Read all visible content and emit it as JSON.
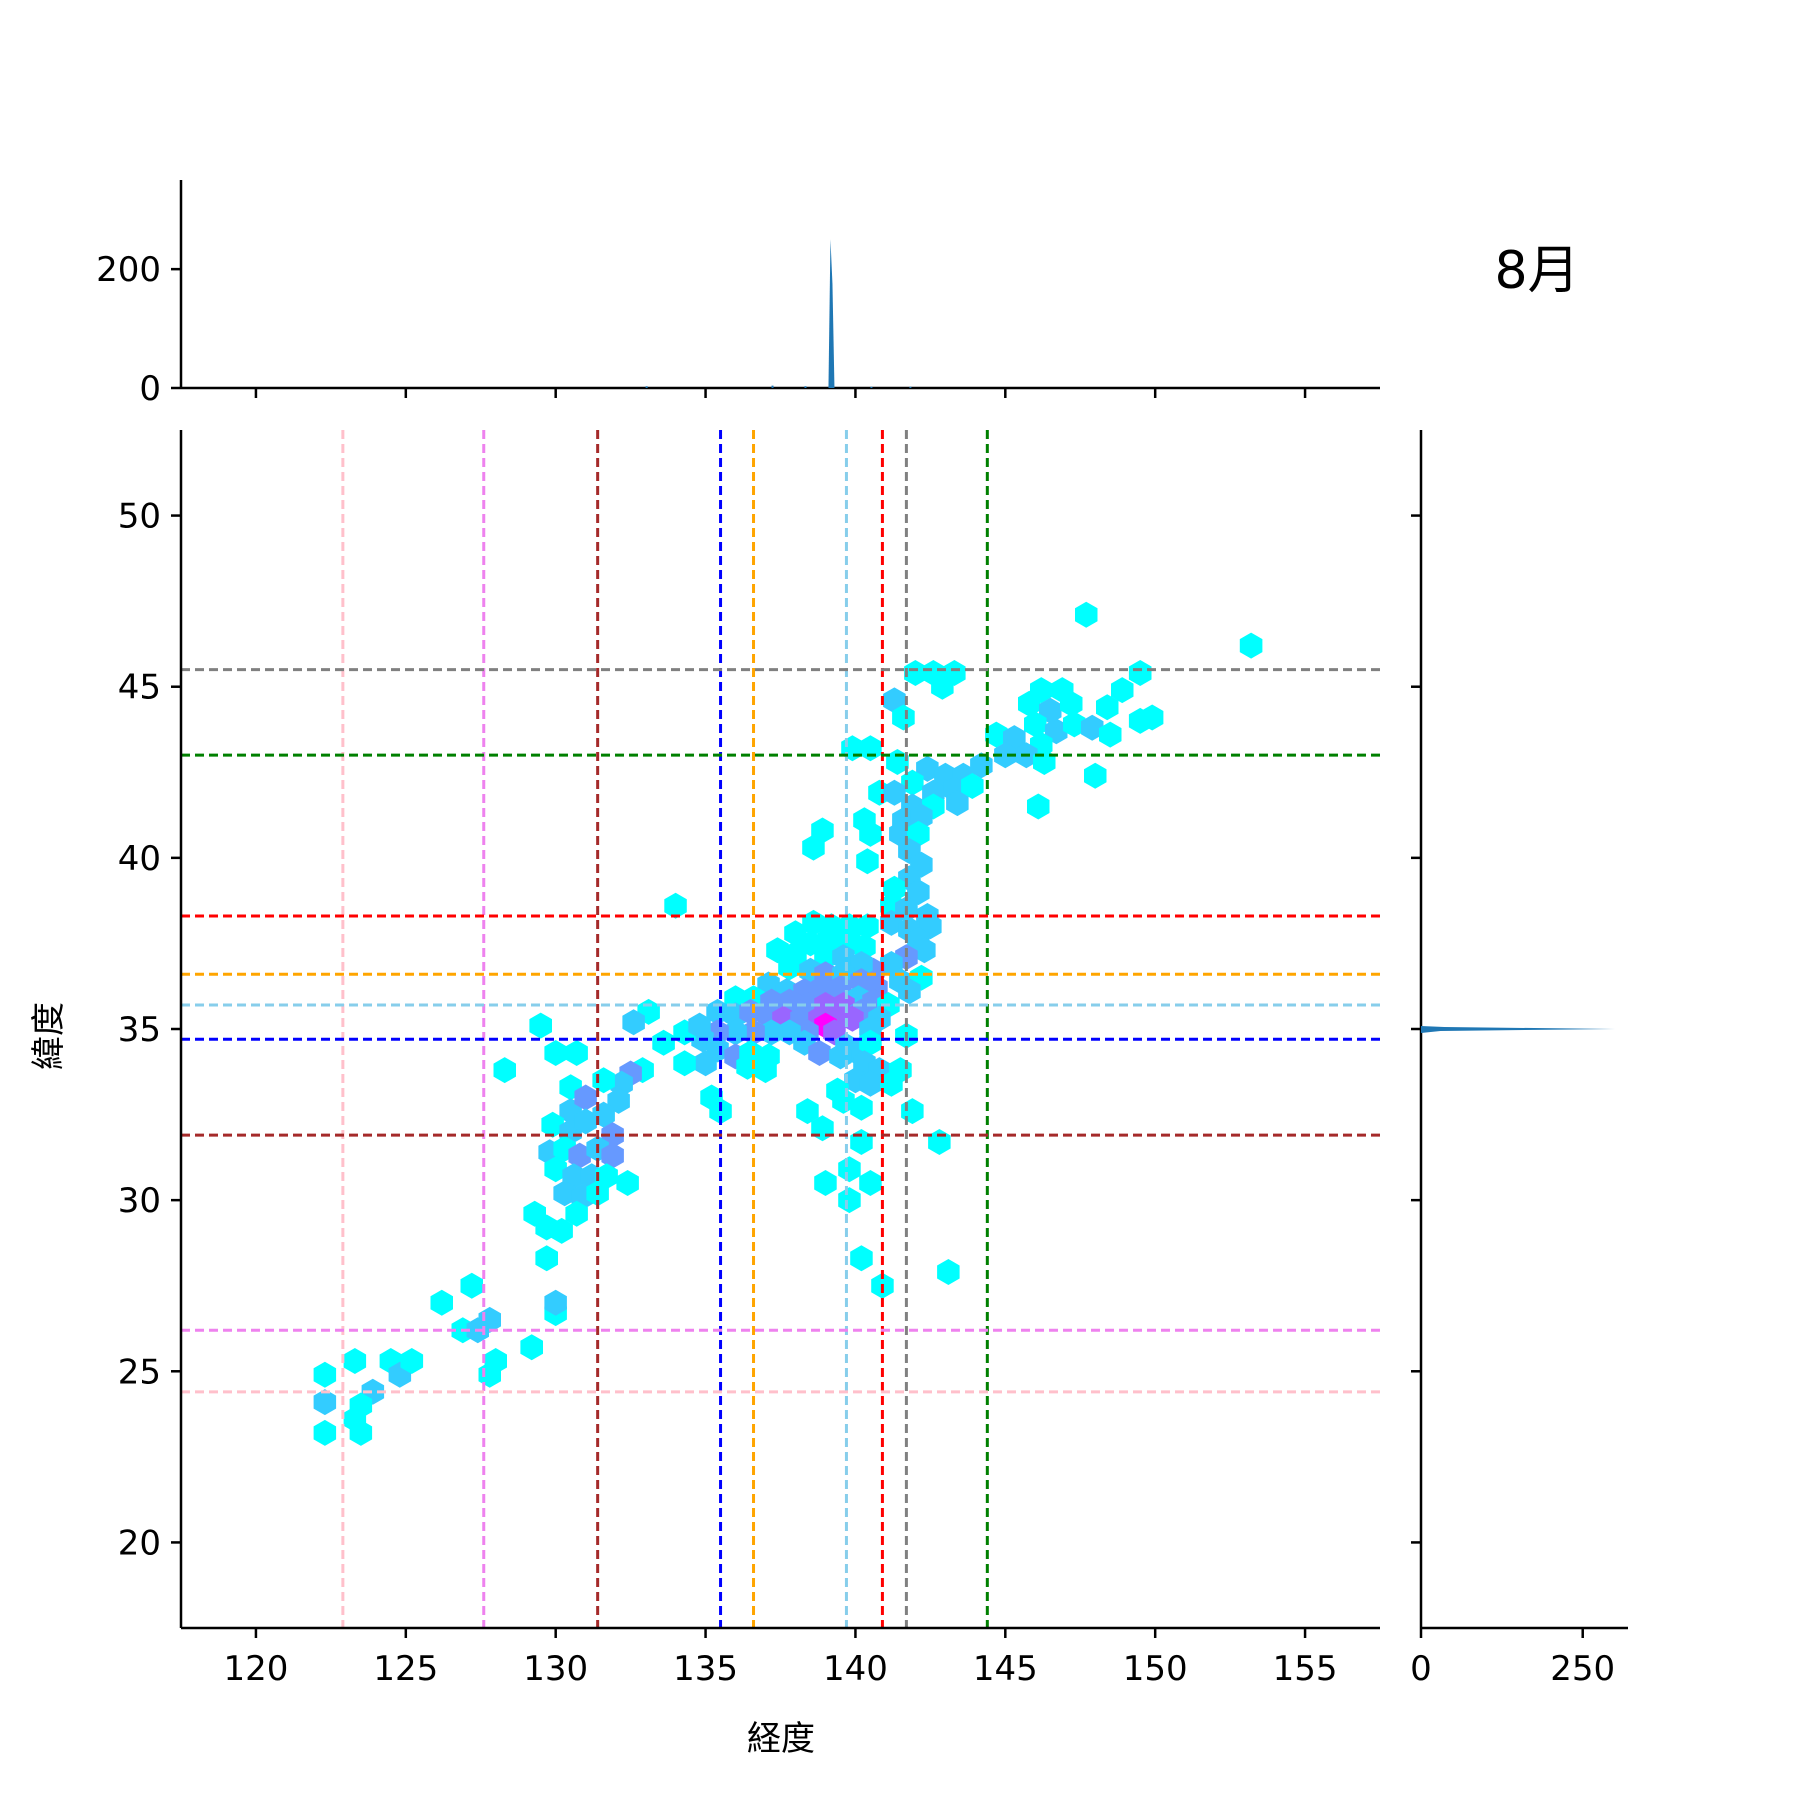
{
  "chart_data": {
    "type": "joint-hexbin",
    "title": "8月",
    "xlabel": "経度",
    "ylabel": "緯度",
    "xlim": [
      117.5,
      157.5
    ],
    "ylim": [
      17.5,
      52.5
    ],
    "x_ticks": [
      120,
      125,
      130,
      135,
      140,
      145,
      150,
      155
    ],
    "y_ticks": [
      20,
      25,
      30,
      35,
      40,
      45,
      50
    ],
    "top_marginal": {
      "type": "histogram",
      "axis": "x",
      "ylim": [
        0,
        350
      ],
      "ticks": [
        0,
        200
      ],
      "peak": {
        "x": 139.2,
        "count": 250
      }
    },
    "right_marginal": {
      "type": "histogram",
      "axis": "y",
      "xlim": [
        0,
        320
      ],
      "ticks": [
        0,
        250
      ],
      "peak": {
        "y": 35.0,
        "count": 300
      }
    },
    "vertical_lines": [
      {
        "x": 122.9,
        "color": "#ffc0cb"
      },
      {
        "x": 127.6,
        "color": "#ee82ee"
      },
      {
        "x": 131.4,
        "color": "#a52a2a"
      },
      {
        "x": 135.5,
        "color": "#0000ff"
      },
      {
        "x": 136.6,
        "color": "#ffa500"
      },
      {
        "x": 139.7,
        "color": "#87ceeb"
      },
      {
        "x": 140.9,
        "color": "#ff0000"
      },
      {
        "x": 141.7,
        "color": "#808080"
      },
      {
        "x": 144.4,
        "color": "#008000"
      }
    ],
    "horizontal_lines": [
      {
        "y": 45.5,
        "color": "#808080"
      },
      {
        "y": 43.0,
        "color": "#008000"
      },
      {
        "y": 38.3,
        "color": "#ff0000"
      },
      {
        "y": 36.6,
        "color": "#ffa500"
      },
      {
        "y": 35.7,
        "color": "#87ceeb"
      },
      {
        "y": 34.7,
        "color": "#0000ff"
      },
      {
        "y": 31.9,
        "color": "#a52a2a"
      },
      {
        "y": 26.2,
        "color": "#ee82ee"
      },
      {
        "y": 24.4,
        "color": "#ffc0cb"
      }
    ],
    "colormap": [
      "#00ffff",
      "#33ccff",
      "#6699ff",
      "#9966ff",
      "#ff00ff"
    ],
    "hexbins": [
      [
        147.7,
        47.1,
        0
      ],
      [
        153.2,
        46.2,
        0
      ],
      [
        149.5,
        45.4,
        0
      ],
      [
        148.9,
        44.9,
        0
      ],
      [
        149.5,
        44.0,
        0
      ],
      [
        149.9,
        44.1,
        0
      ],
      [
        146.2,
        44.9,
        0
      ],
      [
        146.9,
        44.9,
        0
      ],
      [
        145.8,
        44.5,
        0
      ],
      [
        146.5,
        44.3,
        1
      ],
      [
        147.2,
        44.5,
        0
      ],
      [
        148.4,
        44.4,
        0
      ],
      [
        146.0,
        43.9,
        0
      ],
      [
        146.7,
        43.7,
        1
      ],
      [
        147.3,
        43.9,
        0
      ],
      [
        147.9,
        43.8,
        1
      ],
      [
        148.5,
        43.6,
        0
      ],
      [
        144.7,
        43.6,
        0
      ],
      [
        145.3,
        43.5,
        1
      ],
      [
        146.2,
        43.3,
        0
      ],
      [
        145.0,
        43.0,
        1
      ],
      [
        145.7,
        43.0,
        1
      ],
      [
        146.3,
        42.8,
        0
      ],
      [
        148.0,
        42.4,
        0
      ],
      [
        146.1,
        41.5,
        0
      ],
      [
        142.0,
        45.4,
        0
      ],
      [
        142.6,
        45.4,
        0
      ],
      [
        143.3,
        45.4,
        0
      ],
      [
        142.9,
        45.0,
        0
      ],
      [
        141.3,
        44.6,
        1
      ],
      [
        141.6,
        44.1,
        0
      ],
      [
        139.9,
        43.2,
        0
      ],
      [
        140.5,
        43.2,
        0
      ],
      [
        141.4,
        42.8,
        0
      ],
      [
        142.4,
        42.6,
        1
      ],
      [
        143.0,
        42.4,
        1
      ],
      [
        143.6,
        42.4,
        1
      ],
      [
        144.2,
        42.7,
        1
      ],
      [
        141.9,
        42.2,
        0
      ],
      [
        142.6,
        41.9,
        1
      ],
      [
        143.3,
        42.0,
        1
      ],
      [
        143.9,
        42.1,
        0
      ],
      [
        140.8,
        41.9,
        0
      ],
      [
        141.3,
        41.9,
        1
      ],
      [
        141.9,
        41.5,
        1
      ],
      [
        142.6,
        41.5,
        0
      ],
      [
        143.4,
        41.6,
        1
      ],
      [
        141.6,
        41.1,
        1
      ],
      [
        142.2,
        41.2,
        1
      ],
      [
        140.3,
        41.1,
        0
      ],
      [
        140.5,
        40.7,
        0
      ],
      [
        138.9,
        40.8,
        0
      ],
      [
        138.6,
        40.3,
        0
      ],
      [
        141.5,
        40.7,
        1
      ],
      [
        142.1,
        40.7,
        0
      ],
      [
        141.8,
        40.2,
        1
      ],
      [
        140.4,
        39.9,
        0
      ],
      [
        142.2,
        39.8,
        1
      ],
      [
        141.8,
        39.4,
        1
      ],
      [
        141.3,
        39.1,
        0
      ],
      [
        142.1,
        39.0,
        1
      ],
      [
        141.2,
        38.6,
        0
      ],
      [
        141.7,
        38.5,
        1
      ],
      [
        142.4,
        38.3,
        1
      ],
      [
        134.0,
        38.6,
        0
      ],
      [
        141.2,
        38.1,
        1
      ],
      [
        141.8,
        37.9,
        1
      ],
      [
        142.5,
        38.0,
        1
      ],
      [
        142.1,
        37.6,
        1
      ],
      [
        142.3,
        37.3,
        1
      ],
      [
        141.7,
        37.1,
        2
      ],
      [
        141.2,
        36.9,
        1
      ],
      [
        140.6,
        36.7,
        2
      ],
      [
        141.5,
        36.4,
        1
      ],
      [
        142.2,
        36.5,
        0
      ],
      [
        141.8,
        36.1,
        1
      ],
      [
        138.6,
        38.1,
        0
      ],
      [
        139.2,
        38.0,
        0
      ],
      [
        139.8,
        38.0,
        0
      ],
      [
        140.4,
        38.0,
        0
      ],
      [
        138.0,
        37.8,
        0
      ],
      [
        138.5,
        37.5,
        0
      ],
      [
        139.1,
        37.6,
        0
      ],
      [
        139.8,
        37.6,
        0
      ],
      [
        140.3,
        37.4,
        0
      ],
      [
        137.4,
        37.3,
        0
      ],
      [
        138.0,
        37.2,
        0
      ],
      [
        139.0,
        37.1,
        0
      ],
      [
        139.6,
        37.1,
        1
      ],
      [
        140.2,
        36.9,
        1
      ],
      [
        137.8,
        36.8,
        0
      ],
      [
        138.5,
        36.7,
        1
      ],
      [
        139.0,
        36.6,
        2
      ],
      [
        139.6,
        36.6,
        1
      ],
      [
        140.2,
        36.4,
        2
      ],
      [
        140.7,
        36.2,
        2
      ],
      [
        137.1,
        36.3,
        1
      ],
      [
        137.7,
        36.1,
        1
      ],
      [
        138.3,
        36.1,
        2
      ],
      [
        138.9,
        36.2,
        2
      ],
      [
        139.5,
        36.2,
        2
      ],
      [
        140.1,
        35.9,
        1
      ],
      [
        140.6,
        35.8,
        2
      ],
      [
        141.1,
        35.7,
        0
      ],
      [
        136.0,
        35.9,
        0
      ],
      [
        136.6,
        35.9,
        0
      ],
      [
        137.2,
        35.8,
        2
      ],
      [
        137.8,
        35.8,
        2
      ],
      [
        138.4,
        35.7,
        2
      ],
      [
        139.0,
        35.7,
        3
      ],
      [
        139.6,
        35.7,
        3
      ],
      [
        140.2,
        35.5,
        2
      ],
      [
        140.8,
        35.3,
        1
      ],
      [
        135.4,
        35.5,
        1
      ],
      [
        136.0,
        35.4,
        1
      ],
      [
        136.5,
        35.5,
        2
      ],
      [
        137.1,
        35.4,
        2
      ],
      [
        137.6,
        35.3,
        3
      ],
      [
        138.2,
        35.3,
        2
      ],
      [
        138.8,
        35.3,
        3
      ],
      [
        139.4,
        35.3,
        3
      ],
      [
        139.9,
        35.3,
        3
      ],
      [
        140.5,
        35.0,
        1
      ],
      [
        139.0,
        35.1,
        4
      ],
      [
        139.3,
        34.9,
        3
      ],
      [
        138.4,
        34.9,
        2
      ],
      [
        137.8,
        34.9,
        1
      ],
      [
        137.2,
        34.9,
        1
      ],
      [
        136.6,
        34.9,
        2
      ],
      [
        136.0,
        34.9,
        1
      ],
      [
        135.4,
        34.9,
        2
      ],
      [
        134.9,
        34.7,
        1
      ],
      [
        134.3,
        34.9,
        0
      ],
      [
        134.8,
        35.1,
        1
      ],
      [
        135.4,
        34.4,
        1
      ],
      [
        136.0,
        34.2,
        2
      ],
      [
        136.5,
        34.3,
        0
      ],
      [
        137.1,
        34.2,
        0
      ],
      [
        138.3,
        34.6,
        1
      ],
      [
        139.7,
        34.5,
        1
      ],
      [
        140.1,
        34.3,
        1
      ],
      [
        140.5,
        34.6,
        0
      ],
      [
        141.7,
        34.8,
        0
      ],
      [
        138.8,
        34.3,
        2
      ],
      [
        139.5,
        34.2,
        1
      ],
      [
        140.3,
        34.0,
        1
      ],
      [
        140.8,
        33.8,
        1
      ],
      [
        141.5,
        33.8,
        0
      ],
      [
        140.0,
        33.5,
        1
      ],
      [
        140.5,
        33.4,
        1
      ],
      [
        141.2,
        33.4,
        0
      ],
      [
        136.4,
        33.9,
        0
      ],
      [
        137.0,
        33.8,
        0
      ],
      [
        139.4,
        33.2,
        0
      ],
      [
        139.6,
        32.9,
        0
      ],
      [
        140.2,
        32.7,
        0
      ],
      [
        141.9,
        32.6,
        0
      ],
      [
        138.4,
        32.6,
        0
      ],
      [
        138.9,
        32.1,
        0
      ],
      [
        135.0,
        34.0,
        1
      ],
      [
        134.3,
        34.0,
        0
      ],
      [
        133.6,
        34.6,
        0
      ],
      [
        133.1,
        35.5,
        0
      ],
      [
        132.6,
        35.2,
        1
      ],
      [
        129.5,
        35.1,
        0
      ],
      [
        128.3,
        33.8,
        0
      ],
      [
        132.9,
        33.8,
        0
      ],
      [
        132.5,
        33.7,
        2
      ],
      [
        132.2,
        33.4,
        1
      ],
      [
        131.6,
        33.5,
        0
      ],
      [
        132.1,
        32.9,
        1
      ],
      [
        135.2,
        33.0,
        0
      ],
      [
        135.5,
        32.6,
        0
      ],
      [
        130.0,
        34.3,
        0
      ],
      [
        130.7,
        34.3,
        0
      ],
      [
        130.5,
        33.3,
        0
      ],
      [
        130.5,
        32.6,
        1
      ],
      [
        131.0,
        33.0,
        2
      ],
      [
        129.9,
        32.2,
        0
      ],
      [
        130.5,
        32.0,
        1
      ],
      [
        131.0,
        32.3,
        1
      ],
      [
        131.6,
        32.5,
        1
      ],
      [
        131.9,
        31.9,
        2
      ],
      [
        129.8,
        31.4,
        1
      ],
      [
        130.3,
        31.5,
        0
      ],
      [
        130.8,
        31.3,
        2
      ],
      [
        131.4,
        31.5,
        1
      ],
      [
        131.9,
        31.3,
        2
      ],
      [
        130.0,
        30.9,
        0
      ],
      [
        130.6,
        30.7,
        1
      ],
      [
        131.2,
        30.7,
        1
      ],
      [
        131.7,
        30.7,
        0
      ],
      [
        132.4,
        30.5,
        0
      ],
      [
        130.3,
        30.2,
        1
      ],
      [
        130.9,
        30.1,
        1
      ],
      [
        131.4,
        30.2,
        0
      ],
      [
        129.3,
        29.6,
        0
      ],
      [
        129.7,
        29.2,
        0
      ],
      [
        130.2,
        29.1,
        0
      ],
      [
        130.7,
        29.6,
        0
      ],
      [
        129.7,
        28.3,
        0
      ],
      [
        139.0,
        30.5,
        0
      ],
      [
        139.8,
        30.9,
        0
      ],
      [
        139.8,
        30.0,
        0
      ],
      [
        140.5,
        30.5,
        0
      ],
      [
        140.2,
        31.7,
        0
      ],
      [
        142.8,
        31.7,
        0
      ],
      [
        140.2,
        28.3,
        0
      ],
      [
        140.9,
        27.5,
        0
      ],
      [
        143.1,
        27.9,
        0
      ],
      [
        130.0,
        26.7,
        0
      ],
      [
        130.0,
        27.0,
        1
      ],
      [
        129.2,
        25.7,
        0
      ],
      [
        126.2,
        27.0,
        0
      ],
      [
        127.2,
        27.5,
        0
      ],
      [
        126.9,
        26.2,
        0
      ],
      [
        127.4,
        26.2,
        1
      ],
      [
        127.8,
        26.5,
        1
      ],
      [
        127.8,
        24.9,
        0
      ],
      [
        128.0,
        25.3,
        0
      ],
      [
        122.3,
        24.9,
        0
      ],
      [
        122.3,
        24.1,
        1
      ],
      [
        122.3,
        23.2,
        0
      ],
      [
        123.3,
        25.3,
        0
      ],
      [
        123.9,
        24.4,
        1
      ],
      [
        124.5,
        25.3,
        0
      ],
      [
        124.8,
        24.9,
        1
      ],
      [
        125.2,
        25.3,
        0
      ],
      [
        123.5,
        24.0,
        0
      ],
      [
        123.3,
        23.6,
        0
      ],
      [
        123.5,
        23.2,
        0
      ]
    ]
  }
}
